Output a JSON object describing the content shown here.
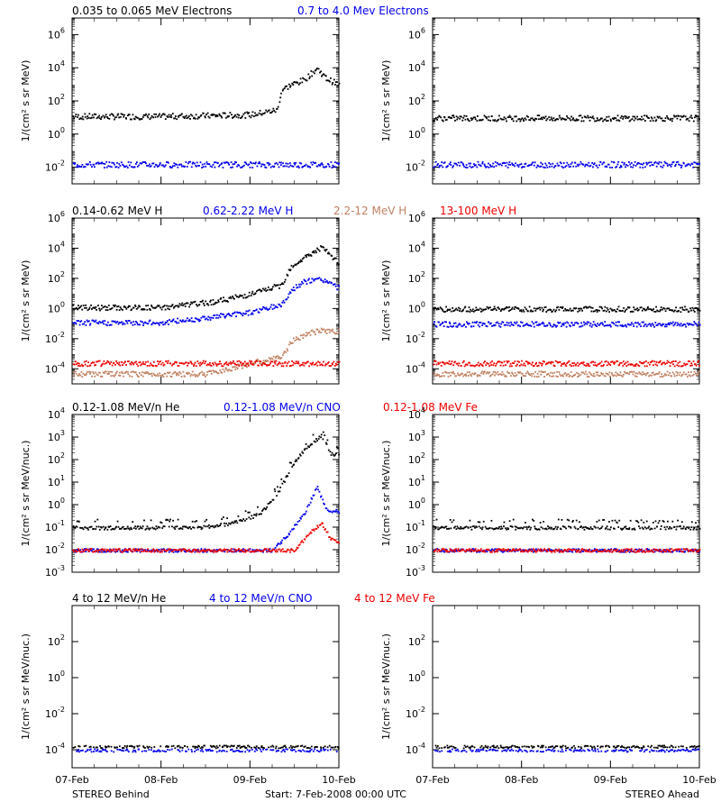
{
  "colors": {
    "black": "#000000",
    "blue": "#0000ee",
    "brown": "#c08060",
    "red": "#ee0000"
  },
  "footer": {
    "left": "STEREO Behind",
    "center": "Start:  7-Feb-2008 00:00 UTC",
    "right": "STEREO Ahead"
  },
  "x_tick_labels": [
    "07-Feb",
    "08-Feb",
    "09-Feb",
    "10-Feb"
  ],
  "rows": [
    {
      "legend": [
        {
          "text": "0.035 to 0.065 MeV Electrons",
          "color": "black"
        },
        {
          "text": "0.7 to 4.0 Mev Electrons",
          "color": "blue"
        }
      ],
      "ylabel": "1/(cm² s sr MeV)",
      "ylim": [
        -3,
        7
      ],
      "yticks": [
        -2,
        0,
        2,
        4,
        6
      ]
    },
    {
      "legend": [
        {
          "text": "0.14-0.62 MeV H",
          "color": "black"
        },
        {
          "text": "0.62-2.22 MeV H",
          "color": "blue"
        },
        {
          "text": "2.2-12 MeV H",
          "color": "brown"
        },
        {
          "text": "13-100 MeV H",
          "color": "red"
        }
      ],
      "ylabel": "1/(cm² s sr MeV)",
      "ylim": [
        -5,
        6
      ],
      "yticks": [
        -4,
        -2,
        0,
        2,
        4,
        6
      ]
    },
    {
      "legend": [
        {
          "text": "0.12-1.08 MeV/n He",
          "color": "black"
        },
        {
          "text": "0.12-1.08 MeV/n CNO",
          "color": "blue"
        },
        {
          "text": "0.12-1.08 MeV Fe",
          "color": "red"
        }
      ],
      "ylabel": "1/(cm² s sr MeV/nuc.)",
      "ylim": [
        -3,
        4
      ],
      "yticks": [
        -3,
        -2,
        -1,
        0,
        1,
        2,
        3,
        4
      ]
    },
    {
      "legend": [
        {
          "text": "4 to 12 MeV/n He",
          "color": "black"
        },
        {
          "text": "4 to 12 MeV/n CNO",
          "color": "blue"
        },
        {
          "text": "4 to 12 MeV Fe",
          "color": "red"
        }
      ],
      "ylabel": "1/(cm² s sr MeV/nuc.)",
      "ylim": [
        -5,
        4
      ],
      "yticks": [
        -4,
        -2,
        0,
        2
      ]
    }
  ],
  "chart_data": [
    {
      "type": "scatter",
      "spacecraft": "STEREO Behind",
      "x_unit": "days since 07-Feb",
      "xlim": [
        0,
        3
      ],
      "yscale": "log",
      "series": [
        {
          "name": "0.035 to 0.065 MeV Electrons",
          "color": "black",
          "x": [
            0,
            1,
            2,
            2.3,
            2.35,
            2.45,
            2.6,
            2.75,
            2.85,
            3
          ],
          "y": [
            1.1,
            1.1,
            1.2,
            1.5,
            2.7,
            3.0,
            3.3,
            4.0,
            3.4,
            3.0
          ]
        },
        {
          "name": "0.7 to 4.0 Mev Electrons",
          "color": "blue",
          "x": [
            0,
            3
          ],
          "y": [
            -1.8,
            -1.8
          ]
        }
      ]
    },
    {
      "type": "scatter",
      "spacecraft": "STEREO Ahead",
      "x_unit": "days since 07-Feb",
      "xlim": [
        0,
        3
      ],
      "yscale": "log",
      "series": [
        {
          "name": "0.035 to 0.065 MeV Electrons",
          "color": "black",
          "x": [
            0,
            3
          ],
          "y": [
            1.0,
            1.0
          ]
        },
        {
          "name": "0.7 to 4.0 Mev Electrons",
          "color": "blue",
          "x": [
            0,
            3
          ],
          "y": [
            -1.8,
            -1.8
          ]
        }
      ]
    },
    {
      "type": "scatter",
      "spacecraft": "STEREO Behind",
      "x_unit": "days since 07-Feb",
      "xlim": [
        0,
        3
      ],
      "yscale": "log",
      "series": [
        {
          "name": "0.14-0.62 MeV H",
          "color": "black",
          "x": [
            0,
            1,
            1.6,
            2.0,
            2.35,
            2.45,
            2.6,
            2.8,
            3
          ],
          "y": [
            0.1,
            0.1,
            0.5,
            1.0,
            1.6,
            2.8,
            3.4,
            4.1,
            3.0
          ]
        },
        {
          "name": "0.62-2.22 MeV H",
          "color": "blue",
          "x": [
            0,
            1,
            1.6,
            2.0,
            2.35,
            2.45,
            2.6,
            2.8,
            3
          ],
          "y": [
            -0.9,
            -0.9,
            -0.5,
            -0.2,
            0.3,
            1.2,
            1.8,
            2.0,
            1.4
          ]
        },
        {
          "name": "2.2-12 MeV H",
          "color": "brown",
          "x": [
            0,
            1.5,
            2.0,
            2.35,
            2.45,
            2.6,
            2.8,
            3
          ],
          "y": [
            -4.3,
            -4.3,
            -3.6,
            -3.2,
            -2.2,
            -1.7,
            -1.4,
            -1.5
          ]
        },
        {
          "name": "13-100 MeV H",
          "color": "red",
          "x": [
            0,
            3
          ],
          "y": [
            -3.6,
            -3.6
          ]
        }
      ]
    },
    {
      "type": "scatter",
      "spacecraft": "STEREO Ahead",
      "x_unit": "days since 07-Feb",
      "xlim": [
        0,
        3
      ],
      "yscale": "log",
      "series": [
        {
          "name": "0.14-0.62 MeV H",
          "color": "black",
          "x": [
            0,
            3
          ],
          "y": [
            0.0,
            0.0
          ]
        },
        {
          "name": "0.62-2.22 MeV H",
          "color": "blue",
          "x": [
            0,
            3
          ],
          "y": [
            -1.0,
            -1.0
          ]
        },
        {
          "name": "2.2-12 MeV H",
          "color": "brown",
          "x": [
            0,
            3
          ],
          "y": [
            -4.3,
            -4.3
          ]
        },
        {
          "name": "13-100 MeV H",
          "color": "red",
          "x": [
            0,
            3
          ],
          "y": [
            -3.6,
            -3.6
          ]
        }
      ]
    },
    {
      "type": "scatter",
      "spacecraft": "STEREO Behind",
      "x_unit": "days since 07-Feb",
      "xlim": [
        0,
        3
      ],
      "yscale": "log",
      "series": [
        {
          "name": "0.12-1.08 MeV/n He",
          "color": "black",
          "x": [
            0,
            1.4,
            1.8,
            2.1,
            2.3,
            2.45,
            2.55,
            2.7,
            2.8,
            2.9,
            3
          ],
          "y": [
            -1.0,
            -1.0,
            -0.8,
            -0.4,
            0.5,
            1.6,
            2.2,
            2.8,
            3.1,
            2.3,
            2.2
          ]
        },
        {
          "name": "0.12-1.08 MeV/n CNO",
          "color": "blue",
          "x": [
            0,
            2.25,
            2.4,
            2.6,
            2.75,
            2.85,
            3
          ],
          "y": [
            -2.0,
            -2.0,
            -1.4,
            -0.4,
            0.8,
            -0.2,
            -0.3
          ]
        },
        {
          "name": "0.12-1.08 MeV Fe",
          "color": "red",
          "x": [
            0,
            2.5,
            2.65,
            2.8,
            2.9,
            3
          ],
          "y": [
            -2.0,
            -2.0,
            -1.3,
            -0.8,
            -1.5,
            -1.7
          ]
        }
      ]
    },
    {
      "type": "scatter",
      "spacecraft": "STEREO Ahead",
      "x_unit": "days since 07-Feb",
      "xlim": [
        0,
        3
      ],
      "yscale": "log",
      "series": [
        {
          "name": "0.12-1.08 MeV/n He",
          "color": "black",
          "x": [
            0,
            3
          ],
          "y": [
            -1.0,
            -1.0
          ]
        },
        {
          "name": "0.12-1.08 MeV/n CNO",
          "color": "blue",
          "x": [
            0,
            3
          ],
          "y": [
            -2.0,
            -2.0
          ]
        },
        {
          "name": "0.12-1.08 MeV Fe",
          "color": "red",
          "x": [
            0,
            3
          ],
          "y": [
            -2.0,
            -2.0
          ]
        }
      ]
    },
    {
      "type": "scatter",
      "spacecraft": "STEREO Behind",
      "x_unit": "days since 07-Feb",
      "xlim": [
        0,
        3
      ],
      "yscale": "log",
      "series": [
        {
          "name": "4 to 12 MeV/n He",
          "color": "black",
          "x": [
            0,
            3
          ],
          "y": [
            -3.8,
            -3.8
          ]
        },
        {
          "name": "4 to 12 MeV/n CNO",
          "color": "blue",
          "x": [
            0,
            3
          ],
          "y": [
            -4.0,
            -4.0
          ]
        },
        {
          "name": "4 to 12 MeV Fe",
          "color": "red",
          "x": [],
          "y": []
        }
      ]
    },
    {
      "type": "scatter",
      "spacecraft": "STEREO Ahead",
      "x_unit": "days since 07-Feb",
      "xlim": [
        0,
        3
      ],
      "yscale": "log",
      "series": [
        {
          "name": "4 to 12 MeV/n He",
          "color": "black",
          "x": [
            0,
            3
          ],
          "y": [
            -3.8,
            -3.8
          ]
        },
        {
          "name": "4 to 12 MeV/n CNO",
          "color": "blue",
          "x": [
            0,
            3
          ],
          "y": [
            -4.0,
            -4.0
          ]
        },
        {
          "name": "4 to 12 MeV Fe",
          "color": "red",
          "x": [],
          "y": []
        }
      ]
    }
  ]
}
